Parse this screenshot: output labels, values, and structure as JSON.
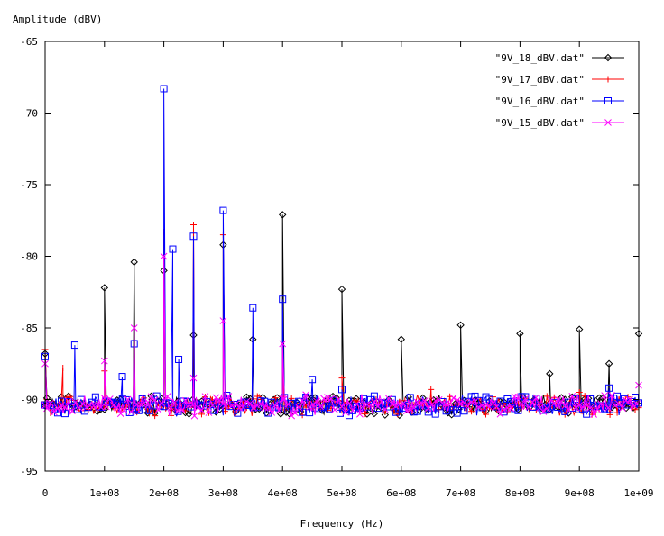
{
  "chart_data": {
    "type": "line",
    "title": "",
    "xlabel": "Frequency (Hz)",
    "ylabel": "Amplitude (dBV)",
    "xlim": [
      0,
      1000000000
    ],
    "ylim": [
      -95,
      -65
    ],
    "x_ticks": [
      {
        "value": 0,
        "label": "0"
      },
      {
        "value": 100000000,
        "label": "1e+08"
      },
      {
        "value": 200000000,
        "label": "2e+08"
      },
      {
        "value": 300000000,
        "label": "3e+08"
      },
      {
        "value": 400000000,
        "label": "4e+08"
      },
      {
        "value": 500000000,
        "label": "5e+08"
      },
      {
        "value": 600000000,
        "label": "6e+08"
      },
      {
        "value": 700000000,
        "label": "7e+08"
      },
      {
        "value": 800000000,
        "label": "8e+08"
      },
      {
        "value": 900000000,
        "label": "9e+08"
      },
      {
        "value": 1000000000,
        "label": "1e+09"
      }
    ],
    "y_ticks": [
      {
        "value": -65,
        "label": "-65"
      },
      {
        "value": -70,
        "label": "-70"
      },
      {
        "value": -75,
        "label": "-75"
      },
      {
        "value": -80,
        "label": "-80"
      },
      {
        "value": -85,
        "label": "-85"
      },
      {
        "value": -90,
        "label": "-90"
      },
      {
        "value": -95,
        "label": "-95"
      }
    ],
    "grid": false,
    "legend_position": "top-right",
    "noise_floor": [
      -91.2,
      -89.6
    ],
    "series": [
      {
        "name": "\"9V_18_dBV.dat\"",
        "color": "#000000",
        "marker": "diamond",
        "peaks": [
          {
            "x": 0,
            "y": -86.8
          },
          {
            "x": 100000000,
            "y": -82.2
          },
          {
            "x": 150000000,
            "y": -80.4
          },
          {
            "x": 200000000,
            "y": -81.0
          },
          {
            "x": 250000000,
            "y": -85.5
          },
          {
            "x": 300000000,
            "y": -79.2
          },
          {
            "x": 350000000,
            "y": -85.8
          },
          {
            "x": 400000000,
            "y": -77.1
          },
          {
            "x": 500000000,
            "y": -82.3
          },
          {
            "x": 600000000,
            "y": -85.8
          },
          {
            "x": 700000000,
            "y": -84.8
          },
          {
            "x": 800000000,
            "y": -85.4
          },
          {
            "x": 850000000,
            "y": -88.2
          },
          {
            "x": 900000000,
            "y": -85.1
          },
          {
            "x": 950000000,
            "y": -87.5
          },
          {
            "x": 1000000000,
            "y": -85.4
          }
        ]
      },
      {
        "name": "\"9V_17_dBV.dat\"",
        "color": "#ff0000",
        "marker": "plus",
        "peaks": [
          {
            "x": 0,
            "y": -86.5
          },
          {
            "x": 30000000,
            "y": -87.8
          },
          {
            "x": 100000000,
            "y": -88.0
          },
          {
            "x": 200000000,
            "y": -78.3
          },
          {
            "x": 250000000,
            "y": -77.8
          },
          {
            "x": 300000000,
            "y": -78.5
          },
          {
            "x": 400000000,
            "y": -87.8
          },
          {
            "x": 500000000,
            "y": -88.5
          },
          {
            "x": 650000000,
            "y": -89.3
          },
          {
            "x": 900000000,
            "y": -89.5
          }
        ]
      },
      {
        "name": "\"9V_16_dBV.dat\"",
        "color": "#0000ff",
        "marker": "square",
        "peaks": [
          {
            "x": 0,
            "y": -87.0
          },
          {
            "x": 50000000,
            "y": -86.2
          },
          {
            "x": 130000000,
            "y": -88.4
          },
          {
            "x": 150000000,
            "y": -86.1
          },
          {
            "x": 200000000,
            "y": -68.3
          },
          {
            "x": 215000000,
            "y": -79.5
          },
          {
            "x": 225000000,
            "y": -87.2
          },
          {
            "x": 250000000,
            "y": -78.6
          },
          {
            "x": 300000000,
            "y": -76.8
          },
          {
            "x": 350000000,
            "y": -83.6
          },
          {
            "x": 400000000,
            "y": -83.0
          },
          {
            "x": 450000000,
            "y": -88.6
          },
          {
            "x": 500000000,
            "y": -89.3
          },
          {
            "x": 950000000,
            "y": -89.2
          }
        ]
      },
      {
        "name": "\"9V_15_dBV.dat\"",
        "color": "#ff00ff",
        "marker": "cross",
        "peaks": [
          {
            "x": 0,
            "y": -87.5
          },
          {
            "x": 100000000,
            "y": -87.3
          },
          {
            "x": 150000000,
            "y": -85.0
          },
          {
            "x": 200000000,
            "y": -80.0
          },
          {
            "x": 250000000,
            "y": -88.5
          },
          {
            "x": 300000000,
            "y": -84.5
          },
          {
            "x": 400000000,
            "y": -86.1
          },
          {
            "x": 1000000000,
            "y": -89.0
          }
        ]
      }
    ]
  }
}
